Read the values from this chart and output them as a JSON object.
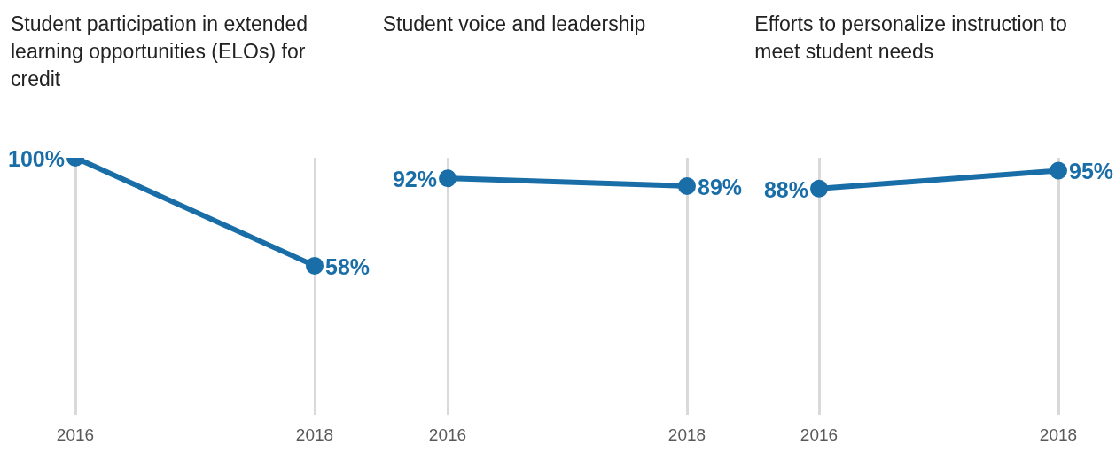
{
  "chart_data": [
    {
      "type": "line",
      "title": "Student participation in extended learning opportunities (ELOs) for credit",
      "categories": [
        "2016",
        "2018"
      ],
      "values": [
        100,
        58
      ],
      "value_labels": [
        "100%",
        "58%"
      ],
      "color": "#1a6ea8",
      "ylim": [
        0,
        100
      ],
      "grid": "x",
      "marker": "circle",
      "tick_labels": "x"
    },
    {
      "type": "line",
      "title": "Student voice and leadership",
      "categories": [
        "2016",
        "2018"
      ],
      "values": [
        92,
        89
      ],
      "value_labels": [
        "92%",
        "89%"
      ],
      "color": "#1a6ea8",
      "ylim": [
        0,
        100
      ],
      "grid": "x",
      "marker": "circle",
      "tick_labels": "x"
    },
    {
      "type": "line",
      "title": "Efforts to personalize instruction to meet student needs",
      "categories": [
        "2016",
        "2018"
      ],
      "values": [
        88,
        95
      ],
      "value_labels": [
        "88%",
        "95%"
      ],
      "color": "#1a6ea8",
      "ylim": [
        0,
        100
      ],
      "grid": "x",
      "marker": "circle",
      "tick_labels": "x"
    }
  ]
}
